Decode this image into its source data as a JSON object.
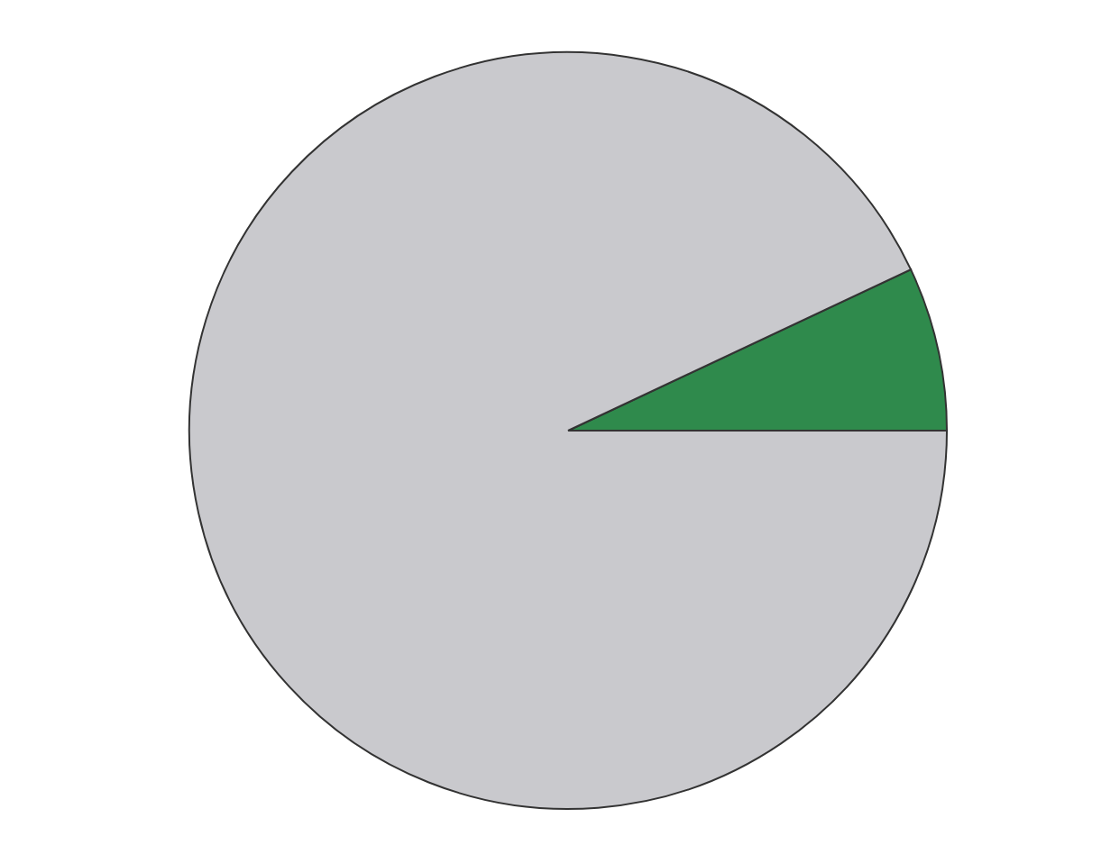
{
  "chart_data": {
    "type": "pie",
    "categories": [
      null,
      null
    ],
    "values": [
      7,
      93
    ],
    "colors": [
      "#2f8a4c",
      "#c9c9cd"
    ]
  }
}
